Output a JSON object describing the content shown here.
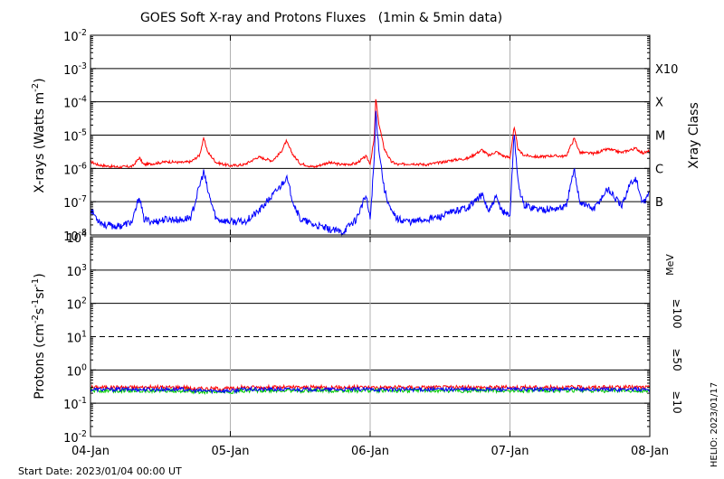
{
  "title": "GOES Soft X-ray and Protons Fluxes   (1min & 5min data)",
  "footer": {
    "start_date": "Start Date: 2023/01/04 00:00 UT",
    "credit": "HELIO: 2023/01/17"
  },
  "colors": {
    "xray_long": "#ff0000",
    "xray_short": "#0000ff",
    "proton_10": "#ff0000",
    "proton_50": "#0000ff",
    "proton_100": "#00cc00",
    "grid": "#000000",
    "day_lines": "#b0b0b0"
  },
  "chart_data": [
    {
      "type": "line",
      "panel": "xray",
      "ylabel": "X-rays (Watts m^-2)",
      "ylabel_parts": [
        "X-rays (Watts m",
        "-2",
        ")"
      ],
      "yscale": "log",
      "ylim": [
        1e-08,
        0.01
      ],
      "y_ticks": [
        {
          "base": "10",
          "exp": "-2"
        },
        {
          "base": "10",
          "exp": "-3"
        },
        {
          "base": "10",
          "exp": "-4"
        },
        {
          "base": "10",
          "exp": "-5"
        },
        {
          "base": "10",
          "exp": "-6"
        },
        {
          "base": "10",
          "exp": "-7"
        },
        {
          "base": "10",
          "exp": "-8"
        }
      ],
      "right_label": "Xray Class",
      "class_labels": [
        {
          "label": "X10",
          "value": 0.001
        },
        {
          "label": "X",
          "value": 0.0001
        },
        {
          "label": "M",
          "value": 1e-05
        },
        {
          "label": "C",
          "value": 1e-06
        },
        {
          "label": "B",
          "value": 1e-07
        }
      ],
      "x_ticks": [
        "04-Jan",
        "05-Jan",
        "06-Jan",
        "07-Jan",
        "08-Jan"
      ],
      "xlim_days": [
        0,
        4
      ],
      "grid": true,
      "series": [
        {
          "key": "long",
          "points": [
            [
              0.0,
              1.6e-06
            ],
            [
              0.05,
              1.3e-06
            ],
            [
              0.1,
              1.2e-06
            ],
            [
              0.2,
              1.1e-06
            ],
            [
              0.3,
              1.15e-06
            ],
            [
              0.35,
              2.1e-06
            ],
            [
              0.38,
              1.3e-06
            ],
            [
              0.45,
              1.4e-06
            ],
            [
              0.55,
              1.6e-06
            ],
            [
              0.65,
              1.5e-06
            ],
            [
              0.72,
              1.6e-06
            ],
            [
              0.78,
              2.5e-06
            ],
            [
              0.81,
              8e-06
            ],
            [
              0.84,
              3e-06
            ],
            [
              0.9,
              1.5e-06
            ],
            [
              1.0,
              1.2e-06
            ],
            [
              1.1,
              1.3e-06
            ],
            [
              1.2,
              2.2e-06
            ],
            [
              1.3,
              1.7e-06
            ],
            [
              1.36,
              3e-06
            ],
            [
              1.4,
              6.5e-06
            ],
            [
              1.45,
              2.5e-06
            ],
            [
              1.5,
              1.4e-06
            ],
            [
              1.6,
              1.1e-06
            ],
            [
              1.7,
              1.5e-06
            ],
            [
              1.8,
              1.3e-06
            ],
            [
              1.9,
              1.4e-06
            ],
            [
              1.97,
              2.3e-06
            ],
            [
              2.0,
              1.4e-06
            ],
            [
              2.03,
              8e-06
            ],
            [
              2.04,
              0.000125
            ],
            [
              2.06,
              2.5e-05
            ],
            [
              2.1,
              4e-06
            ],
            [
              2.15,
              1.6e-06
            ],
            [
              2.2,
              1.3e-06
            ],
            [
              2.3,
              1.4e-06
            ],
            [
              2.4,
              1.3e-06
            ],
            [
              2.5,
              1.5e-06
            ],
            [
              2.6,
              1.8e-06
            ],
            [
              2.7,
              2e-06
            ],
            [
              2.8,
              3.6e-06
            ],
            [
              2.85,
              2.4e-06
            ],
            [
              2.9,
              3.2e-06
            ],
            [
              2.95,
              2.4e-06
            ],
            [
              3.0,
              2.1e-06
            ],
            [
              3.03,
              1.7e-05
            ],
            [
              3.06,
              3.5e-06
            ],
            [
              3.1,
              2.5e-06
            ],
            [
              3.2,
              2.2e-06
            ],
            [
              3.3,
              2.4e-06
            ],
            [
              3.4,
              2.3e-06
            ],
            [
              3.46,
              8e-06
            ],
            [
              3.5,
              3e-06
            ],
            [
              3.6,
              2.8e-06
            ],
            [
              3.7,
              3.8e-06
            ],
            [
              3.8,
              3e-06
            ],
            [
              3.85,
              3.5e-06
            ],
            [
              3.9,
              4e-06
            ],
            [
              3.95,
              2.9e-06
            ],
            [
              4.0,
              3.3e-06
            ]
          ]
        },
        {
          "key": "short",
          "points": [
            [
              0.0,
              6e-08
            ],
            [
              0.05,
              3e-08
            ],
            [
              0.1,
              2e-08
            ],
            [
              0.2,
              1.8e-08
            ],
            [
              0.3,
              2.5e-08
            ],
            [
              0.35,
              1.5e-07
            ],
            [
              0.38,
              3e-08
            ],
            [
              0.45,
              2.5e-08
            ],
            [
              0.55,
              3e-08
            ],
            [
              0.65,
              2.8e-08
            ],
            [
              0.72,
              3.5e-08
            ],
            [
              0.78,
              3e-07
            ],
            [
              0.81,
              8e-07
            ],
            [
              0.84,
              2e-07
            ],
            [
              0.9,
              3e-08
            ],
            [
              1.0,
              2.5e-08
            ],
            [
              1.1,
              2.5e-08
            ],
            [
              1.2,
              5e-08
            ],
            [
              1.3,
              1.5e-07
            ],
            [
              1.36,
              3e-07
            ],
            [
              1.4,
              5.5e-07
            ],
            [
              1.45,
              1e-07
            ],
            [
              1.5,
              3e-08
            ],
            [
              1.6,
              2e-08
            ],
            [
              1.7,
              1.5e-08
            ],
            [
              1.8,
              1.2e-08
            ],
            [
              1.9,
              3e-08
            ],
            [
              1.97,
              1.5e-07
            ],
            [
              2.0,
              3e-08
            ],
            [
              2.03,
              2e-06
            ],
            [
              2.04,
              5.5e-05
            ],
            [
              2.06,
              5e-06
            ],
            [
              2.1,
              2.5e-07
            ],
            [
              2.15,
              5e-08
            ],
            [
              2.2,
              3e-08
            ],
            [
              2.3,
              2.5e-08
            ],
            [
              2.4,
              3e-08
            ],
            [
              2.5,
              3.5e-08
            ],
            [
              2.6,
              5e-08
            ],
            [
              2.7,
              7e-08
            ],
            [
              2.8,
              1.6e-07
            ],
            [
              2.85,
              5e-08
            ],
            [
              2.9,
              1.3e-07
            ],
            [
              2.95,
              5e-08
            ],
            [
              3.0,
              4e-08
            ],
            [
              3.03,
              1.2e-05
            ],
            [
              3.06,
              3e-07
            ],
            [
              3.1,
              8e-08
            ],
            [
              3.2,
              6e-08
            ],
            [
              3.3,
              6e-08
            ],
            [
              3.4,
              7e-08
            ],
            [
              3.46,
              9e-07
            ],
            [
              3.5,
              1e-07
            ],
            [
              3.6,
              6e-08
            ],
            [
              3.7,
              2.5e-07
            ],
            [
              3.8,
              7e-08
            ],
            [
              3.85,
              3e-07
            ],
            [
              3.9,
              5e-07
            ],
            [
              3.95,
              8e-08
            ],
            [
              4.0,
              2e-07
            ]
          ]
        }
      ]
    },
    {
      "type": "line",
      "panel": "protons",
      "ylabel": "Protons (cm^-2 s^-1 sr^-1)",
      "ylabel_parts": [
        "Protons (cm",
        "-2",
        "s",
        "-1",
        "sr",
        "-1",
        ")"
      ],
      "yscale": "log",
      "ylim": [
        0.01,
        10000
      ],
      "y_ticks": [
        {
          "base": "10",
          "exp": "4"
        },
        {
          "base": "10",
          "exp": "3"
        },
        {
          "base": "10",
          "exp": "2"
        },
        {
          "base": "10",
          "exp": "1"
        },
        {
          "base": "10",
          "exp": "0"
        },
        {
          "base": "10",
          "exp": "-1"
        },
        {
          "base": "10",
          "exp": "-2"
        }
      ],
      "right_labels": {
        "unit": "MeV",
        "p100": "≥100",
        "p50": "≥50",
        "p10": "≥10"
      },
      "threshold": 10,
      "x_ticks": [
        "04-Jan",
        "05-Jan",
        "06-Jan",
        "07-Jan",
        "08-Jan"
      ],
      "xlim_days": [
        0,
        4
      ],
      "grid": true,
      "series": [
        {
          "key": "p10",
          "level": 0.3
        },
        {
          "key": "p50",
          "level": 0.26
        },
        {
          "key": "p100",
          "level": 0.24
        }
      ]
    }
  ]
}
